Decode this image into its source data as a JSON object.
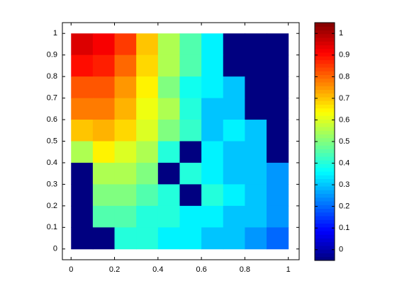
{
  "chart_data": {
    "type": "heatmap",
    "colormap": "jet",
    "x": [
      0.05,
      0.15,
      0.25,
      0.35,
      0.45,
      0.55,
      0.65,
      0.75,
      0.85,
      0.95
    ],
    "y": [
      0.95,
      0.85,
      0.75,
      0.65,
      0.55,
      0.45,
      0.35,
      0.25,
      0.15,
      0.05
    ],
    "z": [
      [
        0.95,
        0.92,
        0.85,
        0.7,
        0.55,
        0.45,
        0.35,
        -0.05,
        -0.05,
        -0.05
      ],
      [
        0.9,
        0.88,
        0.8,
        0.68,
        0.55,
        0.45,
        0.35,
        -0.05,
        -0.05,
        -0.05
      ],
      [
        0.82,
        0.82,
        0.75,
        0.65,
        0.5,
        0.38,
        0.35,
        0.3,
        -0.05,
        -0.05
      ],
      [
        0.78,
        0.78,
        0.72,
        0.62,
        0.55,
        0.4,
        0.3,
        0.3,
        -0.05,
        -0.05
      ],
      [
        0.7,
        0.72,
        0.68,
        0.6,
        0.5,
        0.42,
        0.3,
        0.35,
        0.3,
        -0.05
      ],
      [
        0.55,
        0.65,
        0.6,
        0.55,
        0.4,
        -0.05,
        0.35,
        0.3,
        0.3,
        -0.05
      ],
      [
        -0.05,
        0.55,
        0.55,
        0.5,
        -0.05,
        0.4,
        0.35,
        0.3,
        0.3,
        0.25
      ],
      [
        -0.05,
        0.5,
        0.5,
        0.45,
        0.4,
        -0.05,
        0.4,
        0.35,
        0.3,
        0.25
      ],
      [
        -0.05,
        0.45,
        0.45,
        0.4,
        0.4,
        0.35,
        0.35,
        0.3,
        0.3,
        0.25
      ],
      [
        -0.05,
        -0.05,
        0.4,
        0.4,
        0.35,
        0.35,
        0.3,
        0.3,
        0.25,
        0.2
      ]
    ],
    "xlim": [
      -0.04,
      1.05
    ],
    "ylim": [
      -0.05,
      1.05
    ],
    "xticks": [
      0,
      0.2,
      0.4,
      0.6,
      0.8,
      1
    ],
    "yticks": [
      0,
      0.1,
      0.2,
      0.3,
      0.4,
      0.5,
      0.6,
      0.7,
      0.8,
      0.9,
      1
    ],
    "clim": [
      -0.05,
      1.05
    ],
    "cticks": [
      0,
      0.1,
      0.2,
      0.3,
      0.4,
      0.5,
      0.6,
      0.7,
      0.8,
      0.9,
      1
    ]
  }
}
